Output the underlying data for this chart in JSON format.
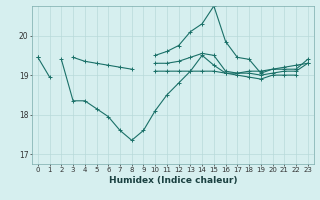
{
  "title": "",
  "xlabel": "Humidex (Indice chaleur)",
  "background_color": "#d6efef",
  "grid_color": "#b8dada",
  "line_color": "#1a7068",
  "xlim": [
    -0.5,
    23.5
  ],
  "ylim": [
    16.75,
    20.75
  ],
  "yticks": [
    17,
    18,
    19,
    20
  ],
  "xticks": [
    0,
    1,
    2,
    3,
    4,
    5,
    6,
    7,
    8,
    9,
    10,
    11,
    12,
    13,
    14,
    15,
    16,
    17,
    18,
    19,
    20,
    21,
    22,
    23
  ],
  "series": [
    {
      "x": [
        0,
        1,
        2,
        3,
        4,
        5,
        6,
        7,
        8,
        9,
        10,
        11,
        12,
        13,
        14,
        15,
        16,
        17,
        18,
        19,
        20,
        21,
        22,
        23
      ],
      "y": [
        19.45,
        18.95,
        null,
        19.45,
        19.35,
        19.3,
        19.25,
        19.2,
        19.15,
        null,
        19.1,
        19.1,
        19.1,
        19.1,
        19.1,
        19.1,
        19.05,
        19.05,
        19.1,
        19.1,
        19.15,
        19.2,
        19.25,
        19.3
      ]
    },
    {
      "x": [
        0,
        1,
        2,
        3,
        4,
        5,
        6,
        7,
        8,
        9,
        10,
        11,
        12,
        13,
        14,
        15,
        16,
        17,
        18,
        19,
        20,
        21,
        22
      ],
      "y": [
        19.45,
        null,
        19.4,
        18.35,
        18.35,
        18.15,
        17.95,
        17.6,
        17.35,
        17.6,
        18.1,
        18.5,
        18.8,
        19.1,
        19.5,
        19.25,
        19.05,
        19.0,
        18.95,
        18.9,
        19.0,
        19.0,
        19.0
      ]
    },
    {
      "x": [
        10,
        11,
        12,
        13,
        14,
        15,
        16,
        17,
        18,
        19,
        20,
        21,
        22,
        23
      ],
      "y": [
        19.5,
        19.6,
        19.75,
        20.1,
        20.3,
        20.75,
        19.85,
        19.45,
        19.4,
        19.05,
        19.15,
        19.15,
        19.15,
        19.4
      ]
    },
    {
      "x": [
        10,
        11,
        12,
        13,
        14,
        15,
        16,
        17,
        18,
        19,
        20,
        21,
        22,
        23
      ],
      "y": [
        19.3,
        19.3,
        19.35,
        19.45,
        19.55,
        19.5,
        19.1,
        19.05,
        19.05,
        19.0,
        19.05,
        19.1,
        19.1,
        19.3
      ]
    }
  ]
}
